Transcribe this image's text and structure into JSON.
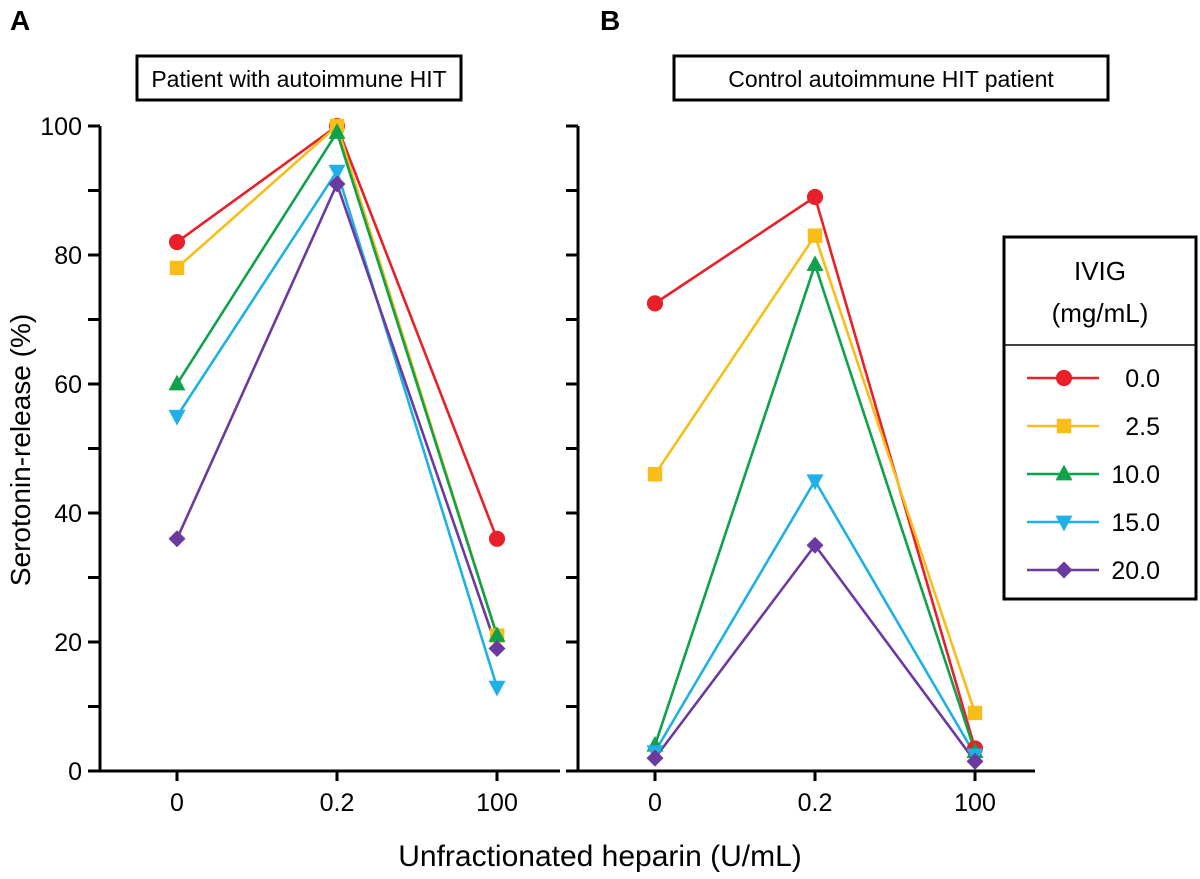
{
  "figure": {
    "xlabel": "Unfractionated heparin (U/mL)",
    "ylabel": "Serotonin-release (%)"
  },
  "legend": {
    "title_line1": "IVIG",
    "title_line2": "(mg/mL)",
    "placement": "right"
  },
  "chart_data": [
    {
      "type": "line",
      "panel_label": "A",
      "title": "Patient with autoimmune HIT",
      "xlabel": "Unfractionated heparin (U/mL)",
      "ylabel": "Serotonin-release (%)",
      "categories": [
        "0",
        "0.2",
        "100"
      ],
      "ylim": [
        0,
        100
      ],
      "yticks": [
        0,
        20,
        40,
        60,
        80,
        100
      ],
      "yminor_step": 10,
      "grid": false,
      "series": [
        {
          "name": "0.0",
          "color": "#e8202a",
          "marker": "circle",
          "values": [
            82,
            100,
            36
          ]
        },
        {
          "name": "2.5",
          "color": "#f8bd18",
          "marker": "square",
          "values": [
            78,
            100,
            21
          ]
        },
        {
          "name": "10.0",
          "color": "#0fa14b",
          "marker": "triangle-up",
          "values": [
            60,
            99,
            21
          ]
        },
        {
          "name": "15.0",
          "color": "#1fb0e6",
          "marker": "triangle-down",
          "values": [
            55,
            93,
            13
          ]
        },
        {
          "name": "20.0",
          "color": "#6a3aa0",
          "marker": "diamond",
          "values": [
            36,
            91,
            19
          ]
        }
      ]
    },
    {
      "type": "line",
      "panel_label": "B",
      "title": "Control autoimmune HIT patient",
      "xlabel": "Unfractionated heparin (U/mL)",
      "ylabel": "Serotonin-release (%)",
      "categories": [
        "0",
        "0.2",
        "100"
      ],
      "ylim": [
        0,
        100
      ],
      "yticks": [
        0,
        20,
        40,
        60,
        80,
        100
      ],
      "yminor_step": 10,
      "grid": false,
      "series": [
        {
          "name": "0.0",
          "color": "#e8202a",
          "marker": "circle",
          "values": [
            72.5,
            89,
            3.5
          ]
        },
        {
          "name": "2.5",
          "color": "#f8bd18",
          "marker": "square",
          "values": [
            46,
            83,
            9
          ]
        },
        {
          "name": "10.0",
          "color": "#0fa14b",
          "marker": "triangle-up",
          "values": [
            4,
            78.5,
            3
          ]
        },
        {
          "name": "15.0",
          "color": "#1fb0e6",
          "marker": "triangle-down",
          "values": [
            3,
            45,
            2.5
          ]
        },
        {
          "name": "20.0",
          "color": "#6a3aa0",
          "marker": "diamond",
          "values": [
            2,
            35,
            1.5
          ]
        }
      ]
    }
  ]
}
